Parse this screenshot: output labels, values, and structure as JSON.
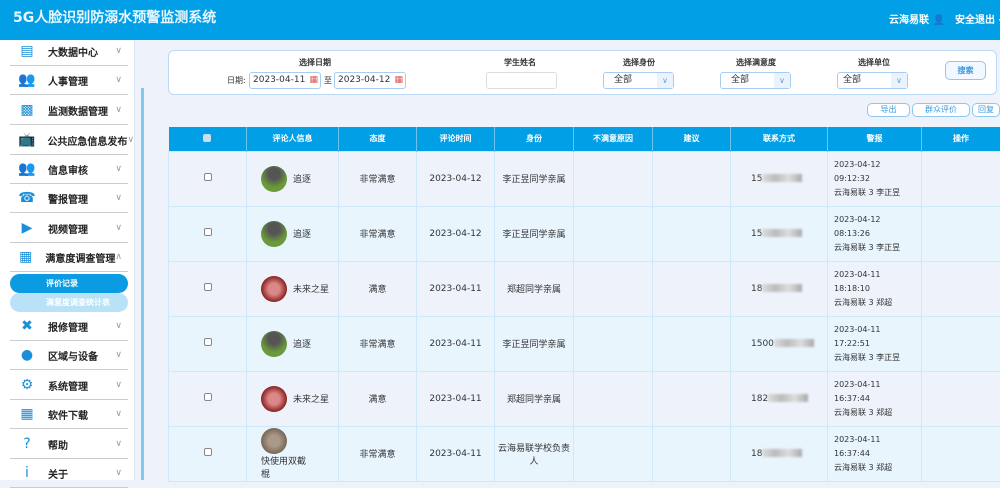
{
  "header": {
    "title": "5G人脸识别防溺水预警监测系统",
    "user": "云海易联",
    "logout": "安全退出"
  },
  "sidebar": {
    "items": [
      {
        "label": "大数据中心",
        "icon": "chart-icon"
      },
      {
        "label": "人事管理",
        "icon": "users-icon"
      },
      {
        "label": "监测数据管理",
        "icon": "data-icon"
      },
      {
        "label": "公共应急信息发布",
        "icon": "broadcast-icon"
      },
      {
        "label": "信息审核",
        "icon": "audit-icon"
      },
      {
        "label": "警报管理",
        "icon": "alarm-icon"
      },
      {
        "label": "视频管理",
        "icon": "video-icon"
      },
      {
        "label": "满意度调查管理",
        "icon": "grid-icon",
        "expanded": true
      },
      {
        "label": "报修管理",
        "icon": "tools-icon"
      },
      {
        "label": "区域与设备",
        "icon": "globe-icon"
      },
      {
        "label": "系统管理",
        "icon": "gear-icon"
      },
      {
        "label": "软件下载",
        "icon": "apps-icon"
      },
      {
        "label": "帮助",
        "icon": "help-icon"
      },
      {
        "label": "关于",
        "icon": "info-icon"
      }
    ],
    "sub": [
      {
        "label": "评价记录",
        "active": true
      },
      {
        "label": "满意度调查统计表",
        "active": false
      }
    ]
  },
  "filter": {
    "date_label": "选择日期",
    "date_prefix": "日期:",
    "date_from": "2023-04-11",
    "to": "至",
    "date_to": "2023-04-12",
    "name_label": "学生姓名",
    "name_value": "",
    "identity_label": "选择身份",
    "identity_value": "全部",
    "satisfaction_label": "选择满意度",
    "satisfaction_value": "全部",
    "unit_label": "选择单位",
    "unit_value": "全部",
    "search": "搜索"
  },
  "actions": {
    "export": "导出",
    "public_review": "群众评价",
    "reply": "回复"
  },
  "table": {
    "headers": [
      "评论人信息",
      "态度",
      "评论时间",
      "身份",
      "不满意原因",
      "建议",
      "联系方式",
      "警报",
      "操作"
    ],
    "rows": [
      {
        "name": "追逐",
        "attitude": "非常满意",
        "time": "2023-04-12",
        "identity": "李正昱同学亲属",
        "reason": "",
        "suggestion": "",
        "phone": "15",
        "alarm_date": "2023-04-12",
        "alarm_time": "09:12:32",
        "alarm_info": "云海易联 3 李正昱"
      },
      {
        "name": "追逐",
        "attitude": "非常满意",
        "time": "2023-04-12",
        "identity": "李正昱同学亲属",
        "reason": "",
        "suggestion": "",
        "phone": "15",
        "alarm_date": "2023-04-12",
        "alarm_time": "08:13:26",
        "alarm_info": "云海易联 3 李正昱"
      },
      {
        "name": "未来之星",
        "attitude": "满意",
        "time": "2023-04-11",
        "identity": "郑超同学亲属",
        "reason": "",
        "suggestion": "",
        "phone": "18",
        "alarm_date": "2023-04-11",
        "alarm_time": "18:18:10",
        "alarm_info": "云海易联 3 郑超"
      },
      {
        "name": "追逐",
        "attitude": "非常满意",
        "time": "2023-04-11",
        "identity": "李正昱同学亲属",
        "reason": "",
        "suggestion": "",
        "phone": "1500",
        "alarm_date": "2023-04-11",
        "alarm_time": "17:22:51",
        "alarm_info": "云海易联 3 李正昱"
      },
      {
        "name": "未来之星",
        "attitude": "满意",
        "time": "2023-04-11",
        "identity": "郑超同学亲属",
        "reason": "",
        "suggestion": "",
        "phone": "182",
        "alarm_date": "2023-04-11",
        "alarm_time": "16:37:44",
        "alarm_info": "云海易联 3 郑超"
      },
      {
        "name": "快使用双截棍",
        "attitude": "非常满意",
        "time": "2023-04-11",
        "identity": "云海易联学校负责人",
        "reason": "",
        "suggestion": "",
        "phone": "18",
        "alarm_date": "2023-04-11",
        "alarm_time": "16:37:44",
        "alarm_info": "云海易联 3 郑超"
      }
    ]
  },
  "colors": {
    "primary": "#009fe6",
    "row_alt": "#e8f5fd"
  }
}
